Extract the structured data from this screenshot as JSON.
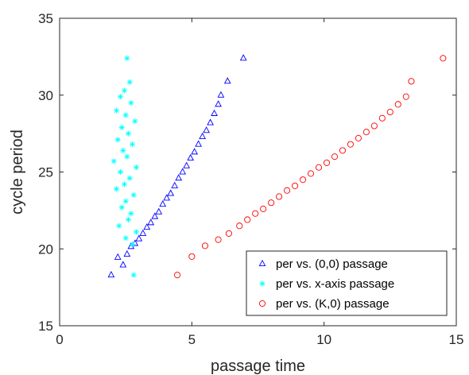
{
  "chart_data": {
    "type": "scatter",
    "title": "",
    "xlabel": "passage time",
    "ylabel": "cycle period",
    "xlim": [
      0,
      15
    ],
    "ylim": [
      15,
      35
    ],
    "xticks": [
      0,
      5,
      10,
      15
    ],
    "yticks": [
      15,
      20,
      25,
      30,
      35
    ],
    "grid": false,
    "legend_position": "bottom-right",
    "series": [
      {
        "name": "per vs. (0,0) passage",
        "marker": "triangle",
        "color": "#0000ff",
        "points": [
          [
            1.95,
            18.3
          ],
          [
            2.2,
            19.45
          ],
          [
            2.4,
            18.95
          ],
          [
            2.55,
            19.65
          ],
          [
            2.7,
            20.15
          ],
          [
            2.85,
            20.35
          ],
          [
            3.0,
            20.65
          ],
          [
            3.15,
            21.0
          ],
          [
            3.3,
            21.4
          ],
          [
            3.45,
            21.7
          ],
          [
            3.6,
            22.1
          ],
          [
            3.75,
            22.4
          ],
          [
            3.9,
            22.9
          ],
          [
            4.05,
            23.3
          ],
          [
            4.2,
            23.6
          ],
          [
            4.35,
            24.1
          ],
          [
            4.5,
            24.6
          ],
          [
            4.65,
            25.0
          ],
          [
            4.8,
            25.4
          ],
          [
            4.95,
            25.9
          ],
          [
            5.1,
            26.3
          ],
          [
            5.25,
            26.8
          ],
          [
            5.4,
            27.3
          ],
          [
            5.55,
            27.7
          ],
          [
            5.7,
            28.2
          ],
          [
            5.85,
            28.8
          ],
          [
            6.0,
            29.4
          ],
          [
            6.1,
            30.0
          ],
          [
            6.35,
            30.9
          ],
          [
            6.95,
            32.4
          ]
        ]
      },
      {
        "name": "per vs. x-axis passage",
        "marker": "asterisk",
        "color": "#00ffff",
        "points": [
          [
            2.55,
            32.4
          ],
          [
            2.65,
            30.85
          ],
          [
            2.45,
            30.3
          ],
          [
            2.3,
            29.9
          ],
          [
            2.7,
            29.5
          ],
          [
            2.15,
            29.0
          ],
          [
            2.5,
            28.7
          ],
          [
            2.85,
            28.3
          ],
          [
            2.35,
            27.9
          ],
          [
            2.6,
            27.5
          ],
          [
            2.2,
            27.1
          ],
          [
            2.75,
            26.8
          ],
          [
            2.4,
            26.4
          ],
          [
            2.55,
            26.0
          ],
          [
            2.05,
            25.7
          ],
          [
            2.9,
            25.3
          ],
          [
            2.3,
            25.0
          ],
          [
            2.65,
            24.6
          ],
          [
            2.45,
            24.2
          ],
          [
            2.15,
            23.9
          ],
          [
            2.8,
            23.5
          ],
          [
            2.5,
            23.1
          ],
          [
            2.35,
            22.7
          ],
          [
            2.7,
            22.3
          ],
          [
            2.6,
            21.9
          ],
          [
            2.25,
            21.5
          ],
          [
            2.9,
            21.1
          ],
          [
            2.5,
            20.7
          ],
          [
            2.75,
            20.3
          ],
          [
            2.8,
            18.3
          ]
        ]
      },
      {
        "name": "per vs. (K,0) passage",
        "marker": "circle",
        "color": "#ff0000",
        "points": [
          [
            4.45,
            18.3
          ],
          [
            5.0,
            19.5
          ],
          [
            5.5,
            20.2
          ],
          [
            6.0,
            20.6
          ],
          [
            6.4,
            21.0
          ],
          [
            6.8,
            21.5
          ],
          [
            7.1,
            21.9
          ],
          [
            7.4,
            22.3
          ],
          [
            7.7,
            22.6
          ],
          [
            8.0,
            23.0
          ],
          [
            8.3,
            23.4
          ],
          [
            8.6,
            23.8
          ],
          [
            8.9,
            24.1
          ],
          [
            9.2,
            24.5
          ],
          [
            9.5,
            24.9
          ],
          [
            9.8,
            25.3
          ],
          [
            10.1,
            25.6
          ],
          [
            10.4,
            26.0
          ],
          [
            10.7,
            26.4
          ],
          [
            11.0,
            26.8
          ],
          [
            11.3,
            27.2
          ],
          [
            11.6,
            27.6
          ],
          [
            11.9,
            28.0
          ],
          [
            12.2,
            28.5
          ],
          [
            12.5,
            28.9
          ],
          [
            12.8,
            29.4
          ],
          [
            13.1,
            29.9
          ],
          [
            13.3,
            30.9
          ],
          [
            14.5,
            32.4
          ]
        ]
      }
    ]
  },
  "legend": {
    "items": [
      {
        "label": "per vs. (0,0) passage",
        "marker": "triangle",
        "color": "#0000ff"
      },
      {
        "label": "per vs. x-axis passage",
        "marker": "asterisk",
        "color": "#00ffff"
      },
      {
        "label": "per vs. (K,0) passage",
        "marker": "circle",
        "color": "#ff0000"
      }
    ]
  }
}
